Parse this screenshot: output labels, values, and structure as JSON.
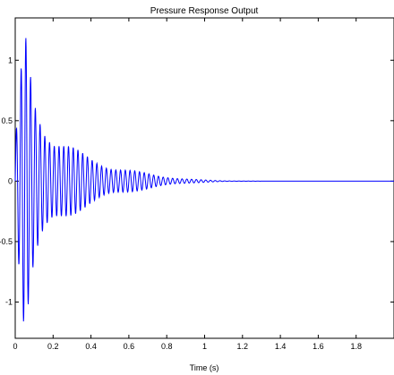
{
  "chart_data": {
    "type": "line",
    "title": "Pressure Response Output",
    "xlabel": "Time (s)",
    "ylabel": "",
    "xlim": [
      0,
      2
    ],
    "ylim": [
      -1.3,
      1.35
    ],
    "x_ticks": [
      0,
      0.2,
      0.4,
      0.6,
      0.8,
      1,
      1.2,
      1.4,
      1.6,
      1.8
    ],
    "x_tick_labels": [
      "0",
      "0.2",
      "0.4",
      "0.6",
      "0.8",
      "1",
      "1.2",
      "1.4",
      "1.6",
      "1.8"
    ],
    "y_ticks": [
      1,
      0.5,
      0,
      -0.5,
      -1
    ],
    "y_tick_labels": [
      "1",
      "0.5",
      "0",
      "-0.5",
      "-1"
    ],
    "grid": false,
    "legend": "none",
    "series": [
      {
        "color": "#0000ff",
        "signal": "damped oscillation, peak about 1.35 near t = 0.05 s, decaying to about 0 by t = 1.1 s",
        "x": [
          0,
          0.05,
          0.1,
          0.15,
          0.2,
          0.25,
          0.3,
          0.35,
          0.4,
          0.45,
          0.5,
          0.55,
          0.6,
          0.65,
          0.7,
          0.75,
          0.8,
          0.85,
          0.9,
          0.95,
          1.0,
          1.05,
          1.1,
          1.2,
          1.4,
          1.6,
          1.8,
          2.0
        ],
        "envelope": [
          0.3,
          1.35,
          0.8,
          0.55,
          0.4,
          0.34,
          0.29,
          0.24,
          0.2,
          0.17,
          0.14,
          0.12,
          0.1,
          0.08,
          0.065,
          0.05,
          0.04,
          0.03,
          0.022,
          0.015,
          0.01,
          0.006,
          0.003,
          0.001,
          0,
          0,
          0,
          0
        ]
      }
    ]
  },
  "colors": {
    "line": "#0000ff",
    "axes": "#000000",
    "background": "#ffffff"
  }
}
